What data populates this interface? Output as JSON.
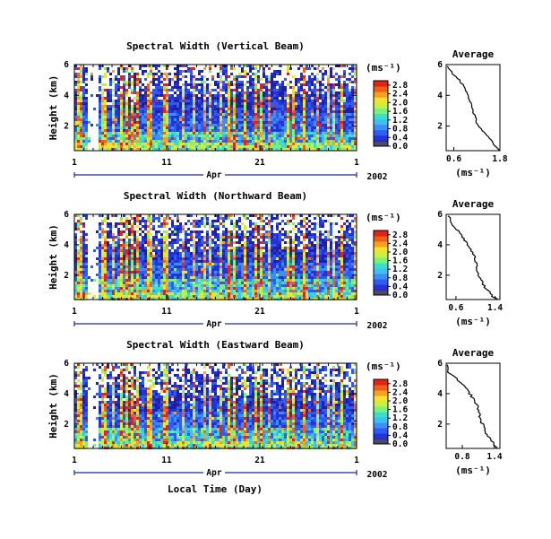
{
  "figure": {
    "time_axis_title": "Local Time (Day)",
    "month_label": "Apr",
    "year_label": "2002",
    "avg_title": "Average",
    "avg_xlabel": "(ms⁻¹)",
    "cbar_unit": "(ms⁻¹)",
    "height_label": "Height (km)"
  },
  "colors": {
    "colormap": [
      "#1f1fa0",
      "#2433d6",
      "#2f5cf0",
      "#3d8ef8",
      "#3fc0f0",
      "#38e0c8",
      "#7ef07a",
      "#c8f040",
      "#f8e030",
      "#f8a020",
      "#f06018",
      "#e02418"
    ],
    "missing": "#ffffff"
  },
  "chart_data": [
    {
      "type": "heatmap",
      "title": "Spectral Width (Vertical Beam)",
      "ylabel": "Height (km)",
      "xlabel": "",
      "x_ticks": [
        "1",
        "11",
        "21",
        "1"
      ],
      "y_ticks": [
        "2",
        "4",
        "6"
      ],
      "ylim": [
        0.4,
        6
      ],
      "colorbar": {
        "label": "(ms⁻¹)",
        "ticks": [
          "0.0",
          "0.4",
          "0.8",
          "1.2",
          "1.6",
          "2.0",
          "2.4",
          "2.8"
        ],
        "range": [
          0,
          3
        ]
      },
      "average_profile": {
        "title": "Average",
        "xlabel": "(ms⁻¹)",
        "x_ticks": [
          "0.6",
          "1.8"
        ],
        "y_ticks": [
          "2",
          "4",
          "6"
        ],
        "xlim": [
          0.4,
          1.8
        ],
        "ylim": [
          0.4,
          6
        ],
        "height": [
          5.9,
          5.4,
          5.0,
          4.6,
          4.2,
          3.8,
          3.4,
          3.0,
          2.6,
          2.2,
          1.8,
          1.4,
          1.0,
          0.6,
          0.4
        ],
        "width": [
          0.45,
          0.55,
          0.75,
          0.85,
          0.95,
          1.0,
          1.05,
          1.1,
          1.15,
          1.2,
          1.3,
          1.45,
          1.6,
          1.7,
          1.8
        ]
      }
    },
    {
      "type": "heatmap",
      "title": "Spectral Width (Northward Beam)",
      "ylabel": "Height (km)",
      "xlabel": "",
      "x_ticks": [
        "1",
        "11",
        "21",
        "1"
      ],
      "y_ticks": [
        "2",
        "4",
        "6"
      ],
      "ylim": [
        0.4,
        6
      ],
      "colorbar": {
        "label": "(ms⁻¹)",
        "ticks": [
          "0.0",
          "0.4",
          "0.8",
          "1.2",
          "1.6",
          "2.0",
          "2.4",
          "2.8"
        ],
        "range": [
          0,
          3
        ]
      },
      "average_profile": {
        "title": "Average",
        "xlabel": "(ms⁻¹)",
        "x_ticks": [
          "0.6",
          "1.4"
        ],
        "y_ticks": [
          "2",
          "4",
          "6"
        ],
        "xlim": [
          0.4,
          1.5
        ],
        "ylim": [
          0.4,
          6
        ],
        "height": [
          5.9,
          5.4,
          5.0,
          4.6,
          4.2,
          3.8,
          3.4,
          3.0,
          2.6,
          2.2,
          1.8,
          1.4,
          1.0,
          0.6,
          0.4
        ],
        "width": [
          0.45,
          0.5,
          0.62,
          0.72,
          0.8,
          0.88,
          0.95,
          1.0,
          1.02,
          1.05,
          1.1,
          1.15,
          1.25,
          1.35,
          1.45
        ]
      }
    },
    {
      "type": "heatmap",
      "title": "Spectral Width (Eastward Beam)",
      "ylabel": "Height (km)",
      "xlabel": "Local Time (Day)",
      "x_ticks": [
        "1",
        "11",
        "21",
        "1"
      ],
      "y_ticks": [
        "2",
        "4",
        "6"
      ],
      "ylim": [
        0.4,
        6
      ],
      "colorbar": {
        "label": "(ms⁻¹)",
        "ticks": [
          "0.0",
          "0.4",
          "0.8",
          "1.2",
          "1.6",
          "2.0",
          "2.4",
          "2.8"
        ],
        "range": [
          0,
          3
        ]
      },
      "average_profile": {
        "title": "Average",
        "xlabel": "(ms⁻¹)",
        "x_ticks": [
          "0.8",
          "1.4"
        ],
        "y_ticks": [
          "2",
          "4",
          "6"
        ],
        "xlim": [
          0.5,
          1.5
        ],
        "ylim": [
          0.4,
          6
        ],
        "height": [
          5.9,
          5.4,
          5.0,
          4.6,
          4.2,
          3.8,
          3.4,
          3.0,
          2.6,
          2.2,
          1.8,
          1.4,
          1.0,
          0.6,
          0.4
        ],
        "width": [
          0.5,
          0.55,
          0.68,
          0.8,
          0.9,
          0.98,
          1.05,
          1.1,
          1.12,
          1.15,
          1.2,
          1.25,
          1.32,
          1.4,
          1.45
        ]
      }
    }
  ]
}
